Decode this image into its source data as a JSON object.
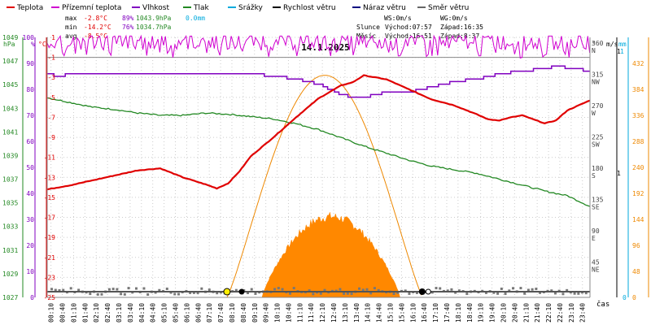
{
  "chart_data": {
    "type": "line",
    "title": "14.1.2025",
    "xlabel": "čas",
    "legend": [
      {
        "label": "Teplota",
        "color": "#e00000"
      },
      {
        "label": "Přízemní teplota",
        "color": "#d000d0"
      },
      {
        "label": "Vlhkost",
        "color": "#8000c0"
      },
      {
        "label": "Tlak",
        "color": "#228822"
      },
      {
        "label": "Srážky",
        "color": "#00aadd"
      },
      {
        "label": "Rychlost větru",
        "color": "#000000"
      },
      {
        "label": "Náraz větru",
        "color": "#000080"
      },
      {
        "label": "Směr větru",
        "color": "#666666"
      }
    ],
    "stats": {
      "max": {
        "label": "max",
        "temp": "-2.8°C",
        "hum": "89%",
        "pres": "1043.9hPa",
        "rain": "0.0mm"
      },
      "min": {
        "label": "min",
        "temp": "-14.2°C",
        "hum": "76%",
        "pres": "1034.7hPa"
      },
      "avg": {
        "label": "avg",
        "temp": "-8.5°C"
      }
    },
    "wind_info": {
      "ws": "WS:0m/s",
      "wg": "WG:0m/s"
    },
    "sun": {
      "label": "Slunce",
      "rise": "Východ:07:57",
      "set": "Západ:16:35"
    },
    "moon": {
      "label": "Měsíc",
      "rise": "Východ:16:51",
      "set": "Západ:8:37"
    },
    "axes": {
      "pressure": {
        "unit": "hPa",
        "ticks": [
          "1049",
          "1047",
          "1045",
          "1043",
          "1041",
          "1039",
          "1037",
          "1035",
          "1033",
          "1031",
          "1029",
          "1027"
        ],
        "range": [
          1027,
          1049
        ]
      },
      "humidity": {
        "unit": "%",
        "ticks": [
          "100",
          "90",
          "80",
          "70",
          "60",
          "50",
          "40",
          "30",
          "20",
          "10",
          "0"
        ],
        "range": [
          0,
          100
        ]
      },
      "temperature": {
        "unit": "°C",
        "ticks": [
          "1",
          "-1",
          "-3",
          "-5",
          "-7",
          "-9",
          "-11",
          "-13",
          "-15",
          "-17",
          "-19",
          "-21",
          "-23",
          "-25"
        ],
        "range": [
          -25,
          1
        ]
      },
      "wind_dir": {
        "unit": "°",
        "ticks": [
          "360",
          "315",
          "270",
          "225",
          "180",
          "135",
          "90",
          "45"
        ],
        "labels": [
          "N",
          "NW",
          "W",
          "SW",
          "S",
          "SE",
          "E",
          "NE"
        ]
      },
      "wind_speed": {
        "unit": "m/s",
        "ticks": [
          "1",
          "1"
        ]
      },
      "rain": {
        "unit": "mm",
        "ticks": [
          "1",
          "0"
        ]
      },
      "solar": {
        "ticks": [
          "432",
          "384",
          "336",
          "288",
          "240",
          "192",
          "144",
          "96",
          "48",
          "0"
        ],
        "range": [
          0,
          480
        ]
      }
    },
    "time_labels": [
      "00:10",
      "00:40",
      "01:10",
      "01:40",
      "02:10",
      "02:40",
      "03:10",
      "03:40",
      "04:10",
      "04:40",
      "05:10",
      "05:40",
      "06:10",
      "06:40",
      "07:10",
      "07:40",
      "08:10",
      "08:40",
      "09:10",
      "09:40",
      "10:10",
      "10:40",
      "11:10",
      "11:40",
      "12:10",
      "12:40",
      "13:10",
      "13:40",
      "14:10",
      "14:40",
      "15:10",
      "15:40",
      "16:10",
      "16:40",
      "17:10",
      "17:40",
      "18:10",
      "18:40",
      "19:10",
      "19:40",
      "20:10",
      "20:40",
      "21:10",
      "21:40",
      "22:10",
      "22:40",
      "23:10",
      "23:40"
    ],
    "series": [
      {
        "name": "Teplota",
        "unit": "°C",
        "hours": [
          0,
          1,
          2,
          3,
          4,
          5,
          6,
          7,
          7.5,
          8,
          8.5,
          9,
          10,
          11,
          12,
          13,
          13.5,
          14,
          15,
          16,
          17,
          18,
          19,
          19.5,
          20,
          20.5,
          21,
          22,
          22.5,
          23,
          24
        ],
        "values": [
          -14.2,
          -13.8,
          -13.3,
          -12.8,
          -12.3,
          -12.1,
          -13.0,
          -13.7,
          -14.1,
          -13.6,
          -12.4,
          -10.9,
          -9.0,
          -7.0,
          -5.1,
          -3.8,
          -3.5,
          -2.8,
          -3.2,
          -4.2,
          -5.2,
          -5.8,
          -6.7,
          -7.2,
          -7.3,
          -7.0,
          -6.8,
          -7.6,
          -7.3,
          -6.3,
          -5.3
        ]
      },
      {
        "name": "Vlhkost",
        "unit": "%",
        "hours": [
          0,
          0.5,
          1,
          3,
          5,
          8,
          9,
          10,
          11,
          12,
          13,
          13.5,
          14,
          15,
          16,
          17,
          18,
          19,
          20,
          22,
          22.5,
          24
        ],
        "values": [
          86,
          85,
          86,
          86,
          86,
          86,
          86,
          85,
          84,
          82,
          78,
          77,
          77,
          79,
          79,
          81,
          83,
          84,
          86,
          88,
          89,
          87
        ]
      },
      {
        "name": "Tlak",
        "unit": "hPa",
        "hours": [
          0,
          1,
          2,
          3,
          4,
          5,
          6,
          7,
          8,
          9,
          10,
          11,
          12,
          13,
          14,
          15,
          16,
          17,
          18,
          19,
          20,
          21,
          22,
          23,
          24
        ],
        "values": [
          1043.9,
          1043.5,
          1043.1,
          1042.9,
          1042.6,
          1042.4,
          1042.4,
          1042.6,
          1042.5,
          1042.3,
          1042.1,
          1041.7,
          1041.2,
          1040.5,
          1039.8,
          1039.2,
          1038.6,
          1038.1,
          1037.8,
          1037.5,
          1037.0,
          1036.5,
          1036.0,
          1035.6,
          1034.7
        ]
      },
      {
        "name": "Přízemní teplota",
        "unit": "%",
        "note": "purple noisy line near 100",
        "values": []
      }
    ]
  }
}
